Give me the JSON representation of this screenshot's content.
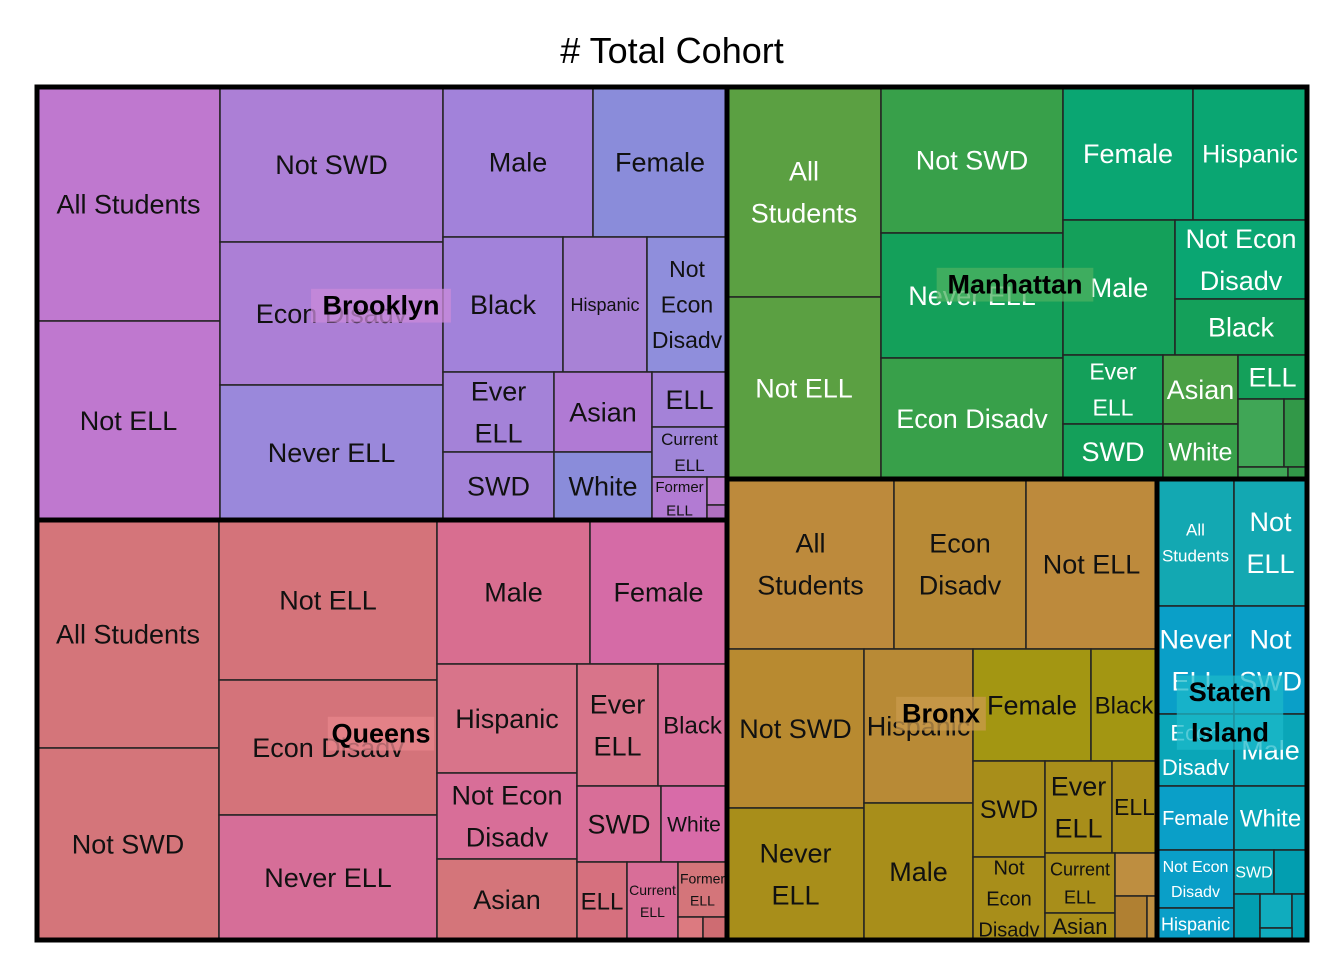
{
  "chart_data": {
    "type": "treemap",
    "title": "# Total Cohort",
    "groups": [
      {
        "name": "Brooklyn",
        "color": "#b878c8",
        "tiles": [
          {
            "label": "All Students",
            "color": "#bf78cf"
          },
          {
            "label": "Not ELL",
            "color": "#bf78cf"
          },
          {
            "label": "Not SWD",
            "color": "#ac7fd6"
          },
          {
            "label": "Econ Disadv",
            "color": "#ac7fd6"
          },
          {
            "label": "Never ELL",
            "color": "#9a88db"
          },
          {
            "label": "Male",
            "color": "#a282da"
          },
          {
            "label": "Female",
            "color": "#8a8cda"
          },
          {
            "label": "Black",
            "color": "#a282da"
          },
          {
            "label": "Hispanic",
            "color": "#a882d6"
          },
          {
            "label": "Not Econ Disadv",
            "color": "#8f8edc"
          },
          {
            "label": "Ever ELL",
            "color": "#a482d8"
          },
          {
            "label": "Asian",
            "color": "#b07ad4"
          },
          {
            "label": "ELL",
            "color": "#a482d8"
          },
          {
            "label": "SWD",
            "color": "#a482d8"
          },
          {
            "label": "White",
            "color": "#8a8cda"
          },
          {
            "label": "Current ELL",
            "color": "#9f85d8"
          },
          {
            "label": "Former ELL",
            "color": "#b27bd3"
          }
        ]
      },
      {
        "name": "Queens",
        "color": "#d6747a",
        "tiles": [
          {
            "label": "All Students",
            "color": "#d4757a"
          },
          {
            "label": "Not SWD",
            "color": "#d4757a"
          },
          {
            "label": "Not ELL",
            "color": "#d4737a"
          },
          {
            "label": "Econ Disadv",
            "color": "#d4737a"
          },
          {
            "label": "Never ELL",
            "color": "#d66e98"
          },
          {
            "label": "Male",
            "color": "#d86e90"
          },
          {
            "label": "Female",
            "color": "#d56ba6"
          },
          {
            "label": "Hispanic",
            "color": "#d8748a"
          },
          {
            "label": "Not Econ Disadv",
            "color": "#d86e98"
          },
          {
            "label": "Asian",
            "color": "#d4757a"
          },
          {
            "label": "Ever ELL",
            "color": "#d8748a"
          },
          {
            "label": "Black",
            "color": "#d86e98"
          },
          {
            "label": "SWD",
            "color": "#d86e98"
          },
          {
            "label": "White",
            "color": "#d86ba8"
          },
          {
            "label": "ELL",
            "color": "#d6707e"
          },
          {
            "label": "Current ELL",
            "color": "#d86e98"
          },
          {
            "label": "Former ELL",
            "color": "#d4757a"
          }
        ]
      },
      {
        "name": "Manhattan",
        "color": "#3aa050",
        "tiles": [
          {
            "label": "All Students",
            "color": "#5ba042"
          },
          {
            "label": "Not ELL",
            "color": "#5ba042"
          },
          {
            "label": "Not SWD",
            "color": "#38a04a"
          },
          {
            "label": "Never ELL",
            "color": "#14a05a"
          },
          {
            "label": "Econ Disadv",
            "color": "#38a04a"
          },
          {
            "label": "Female",
            "color": "#0aa672"
          },
          {
            "label": "Hispanic",
            "color": "#0aa672"
          },
          {
            "label": "Male",
            "color": "#14a05a"
          },
          {
            "label": "Not Econ Disadv",
            "color": "#0aa672"
          },
          {
            "label": "Black",
            "color": "#14a05a"
          },
          {
            "label": "Ever ELL",
            "color": "#14a05a"
          },
          {
            "label": "Asian",
            "color": "#4aa045"
          },
          {
            "label": "ELL",
            "color": "#14a05a"
          },
          {
            "label": "SWD",
            "color": "#14a05a"
          },
          {
            "label": "White",
            "color": "#38a04a"
          }
        ]
      },
      {
        "name": "Bronx",
        "color": "#b8883a",
        "tiles": [
          {
            "label": "All Students",
            "color": "#bd8a3c"
          },
          {
            "label": "Econ Disadv",
            "color": "#b88a36"
          },
          {
            "label": "Not ELL",
            "color": "#bd8a3c"
          },
          {
            "label": "Not SWD",
            "color": "#b88a30"
          },
          {
            "label": "Never ELL",
            "color": "#a88e1a"
          },
          {
            "label": "Hispanic",
            "color": "#b88a36"
          },
          {
            "label": "Male",
            "color": "#a88e1a"
          },
          {
            "label": "Female",
            "color": "#a39612"
          },
          {
            "label": "Black",
            "color": "#a39612"
          },
          {
            "label": "SWD",
            "color": "#a88e1a"
          },
          {
            "label": "Ever ELL",
            "color": "#a88e1a"
          },
          {
            "label": "ELL",
            "color": "#a88e1a"
          },
          {
            "label": "Not Econ Disadv",
            "color": "#a88e1a"
          },
          {
            "label": "Current ELL",
            "color": "#a88e1a"
          },
          {
            "label": "Asian",
            "color": "#a88e1a"
          }
        ]
      },
      {
        "name": "Staten Island",
        "color": "#0aa6b8",
        "tiles": [
          {
            "label": "All Students",
            "color": "#13a8b2"
          },
          {
            "label": "Not ELL",
            "color": "#13a8b2"
          },
          {
            "label": "Never ELL",
            "color": "#0a9fc8"
          },
          {
            "label": "Not SWD",
            "color": "#0a9fc8"
          },
          {
            "label": "Econ Disadv",
            "color": "#0aa6b8"
          },
          {
            "label": "Male",
            "color": "#0aa6b8"
          },
          {
            "label": "Female",
            "color": "#0a9fc8"
          },
          {
            "label": "White",
            "color": "#0aa6b8"
          },
          {
            "label": "Not Econ Disadv",
            "color": "#0a9fc8"
          },
          {
            "label": "SWD",
            "color": "#0aa6b8"
          },
          {
            "label": "Hispanic",
            "color": "#0a9fc8"
          }
        ]
      }
    ]
  }
}
